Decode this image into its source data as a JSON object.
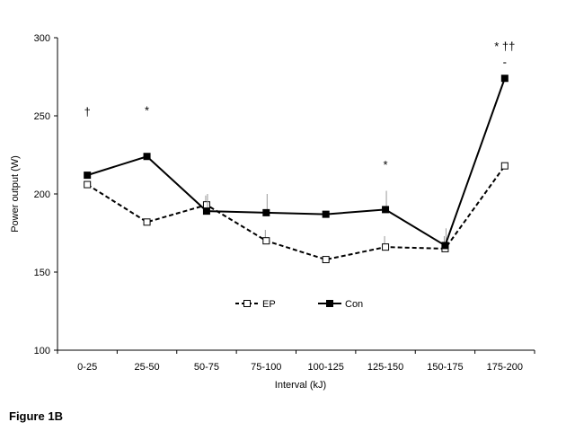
{
  "figure_label": "Figure 1B",
  "chart_data": {
    "type": "line",
    "title": "",
    "xlabel": "Interval  (kJ)",
    "ylabel": "Power  output (W)",
    "categories": [
      "0-25",
      "25-50",
      "50-75",
      "75-100",
      "100-125",
      "125-150",
      "150-175",
      "175-200"
    ],
    "ylim": [
      100,
      300
    ],
    "yticks": [
      100,
      150,
      200,
      250,
      300
    ],
    "grid": false,
    "legend_position": "bottom-center",
    "series": [
      {
        "name": "EP",
        "values": [
          206,
          182,
          193,
          170,
          158,
          166,
          165,
          218
        ],
        "error": [
          0,
          0,
          6,
          7,
          0,
          7,
          8,
          0
        ],
        "line_style": "dashed",
        "marker": "open-square",
        "color": "#000000"
      },
      {
        "name": "Con",
        "values": [
          212,
          224,
          189,
          188,
          187,
          190,
          167,
          274
        ],
        "error": [
          0,
          0,
          11,
          12,
          0,
          12,
          11,
          0
        ],
        "line_style": "solid",
        "marker": "filled-square",
        "color": "#000000"
      }
    ],
    "annotations": [
      {
        "category": "0-25",
        "text": "†",
        "y": 250
      },
      {
        "category": "25-50",
        "text": "*",
        "y": 251
      },
      {
        "category": "125-150",
        "text": "*",
        "y": 216
      },
      {
        "category": "175-200",
        "text": "* ††",
        "y": 292
      },
      {
        "category": "175-200",
        "text": "-",
        "y": 282
      }
    ]
  }
}
